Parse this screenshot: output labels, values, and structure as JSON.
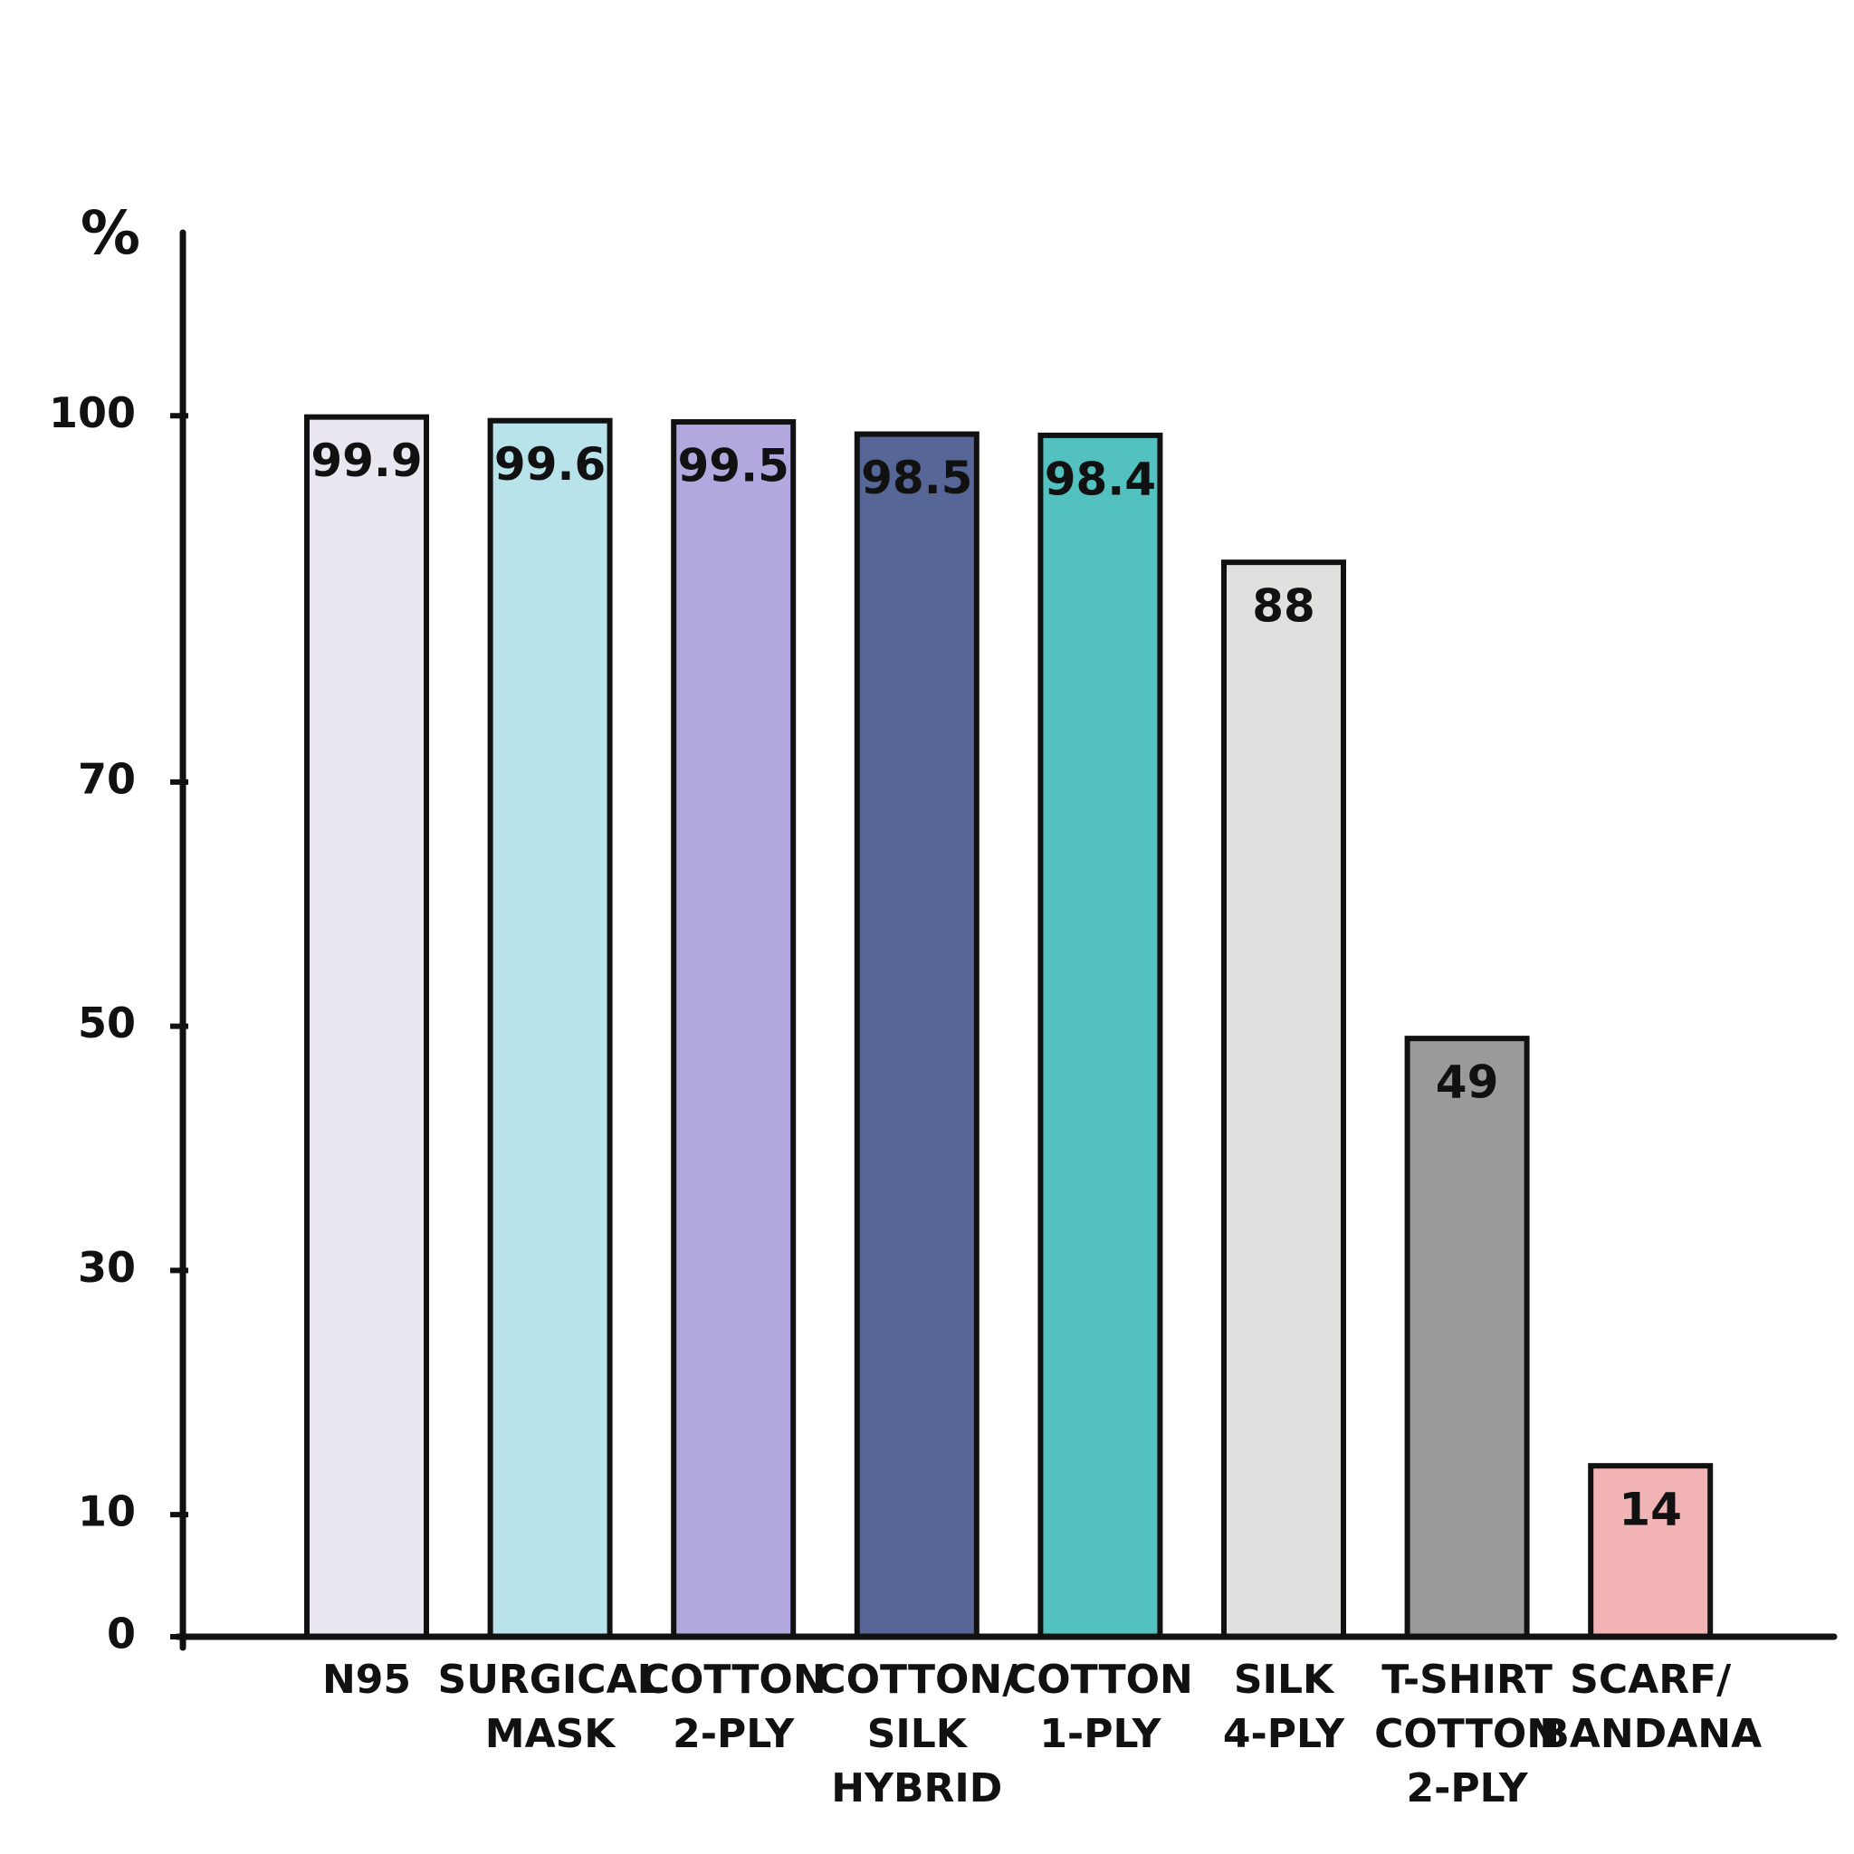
{
  "chart_data": {
    "type": "bar",
    "y_label": "%",
    "categories": [
      "N95",
      "SURGICAL\nMASK",
      "COTTON\n2-PLY",
      "COTTON/\nSILK\nHYBRID",
      "COTTON\n1-PLY",
      "SILK\n4-PLY",
      "T-SHIRT\nCOTTON\n2-PLY",
      "SCARF/\nBANDANA"
    ],
    "values": [
      99.9,
      99.6,
      99.5,
      98.5,
      98.4,
      88,
      49,
      14
    ],
    "colors": [
      "#ebe7f0",
      "#b8e3ea",
      "#b2a8de",
      "#566797",
      "#53c1c0",
      "#e0e1de",
      "#9a9a9a",
      "#f2b3b5"
    ],
    "ylim": [
      0,
      115
    ],
    "yticks": [
      0,
      10,
      30,
      50,
      70,
      100
    ]
  }
}
